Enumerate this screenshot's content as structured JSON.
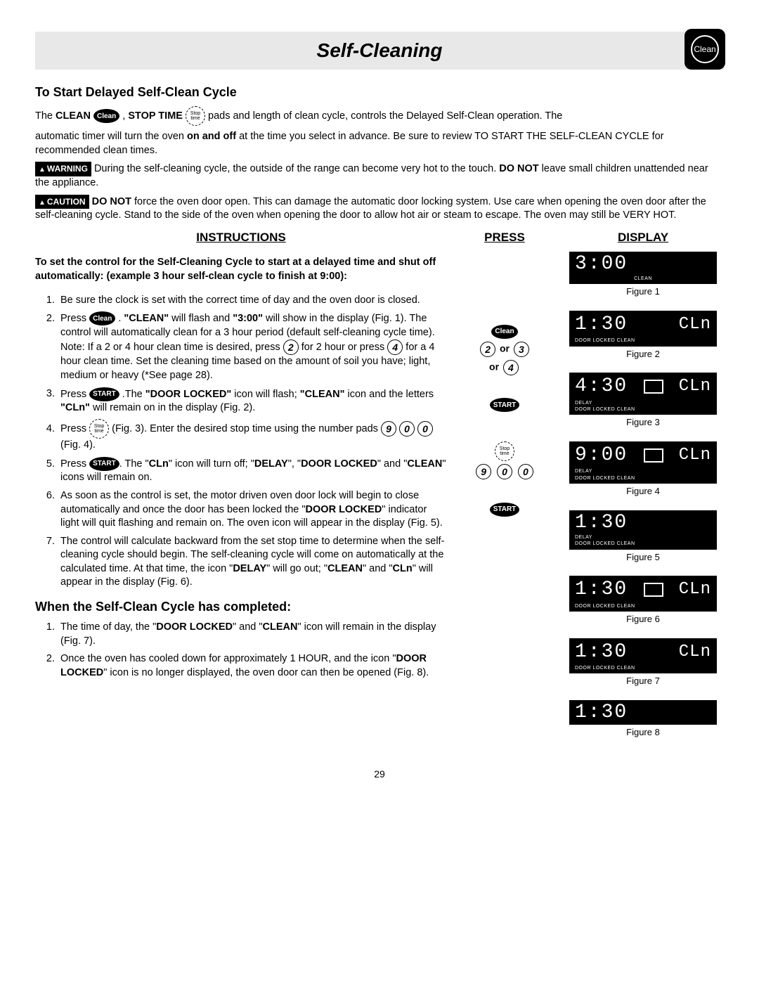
{
  "header": {
    "title": "Self-Cleaning",
    "badge_label": "Clean"
  },
  "section1_heading": "To Start Delayed Self-Clean Cycle",
  "intro": {
    "line1a": "The ",
    "line1b": "CLEAN",
    "line1c": ", ",
    "line1d": "STOP TIME",
    "line1e": " pads and length of clean cycle, controls the Delayed Self-Clean operation. The",
    "line2a": "automatic timer will turn the oven ",
    "line2b": "on and off",
    "line2c": " at the time you select in advance. Be sure to review TO START THE SELF-CLEAN CYCLE for recommended clean times."
  },
  "warning": {
    "label": "WARNING",
    "text_a": "During the self-cleaning cycle, the outside of the range can become very hot to the touch. ",
    "text_b": "DO NOT",
    "text_c": " leave small children unattended near the appliance."
  },
  "caution": {
    "label": "CAUTION",
    "text_a": "DO NOT",
    "text_b": " force the oven door open. This can damage the automatic door locking system. Use care when opening the oven door after the self-cleaning cycle. Stand to the side of the oven when opening the door to allow hot air or steam to escape.  The oven may still be VERY HOT."
  },
  "col_headers": {
    "instructions": "INSTRUCTIONS",
    "press": "PRESS",
    "display": "DISPLAY"
  },
  "instr_lead": "To set the control for the Self-Cleaning Cycle to start at a delayed time and shut off automatically: (example 3 hour self-clean cycle to finish at 9:00):",
  "instructions": [
    "Be sure the clock is set with the correct time of day and the oven door is closed.",
    "Press [Clean] . \"CLEAN\" will flash and \"3:00\" will show in the display (Fig. 1). The control will automatically clean for a 3 hour period (default self-cleaning cycle time). Note: If a 2 or 4 hour clean time is desired, press (2) for 2 hour or press (4) for a 4 hour clean time.  Set the cleaning time based on the amount of soil you have; light, medium or heavy (*See page 28).",
    "Press [START] .The \"DOOR LOCKED\" icon will flash; \"CLEAN\" icon and the letters \"CLn\" will remain on in the display (Fig. 2).",
    "Press [Stop time] (Fig. 3).  Enter the desired stop time using the number pads (9)(0)(0) (Fig. 4).",
    "Press [START]. The \"CLn\" icon will turn off; \"DELAY\", \"DOOR LOCKED\" and \"CLEAN\" icons will remain on.",
    "As soon as the control is set, the motor driven oven door lock will begin to close automatically and once the door has been locked the \"DOOR LOCKED\" indicator light will quit flashing and remain on. The oven icon will appear in the display (Fig. 5).",
    "The control will calculate backward from the set stop time to determine when the self-cleaning cycle should begin. The self-cleaning cycle will come on automatically at the calculated time. At that time, the icon \"DELAY\" will go out; \"CLEAN\" and \"CLn\" will appear in the display (Fig. 6)."
  ],
  "section2_heading": "When the Self-Clean Cycle has completed:",
  "completed": [
    "The time of day, the \"DOOR LOCKED\" and \"CLEAN\" icon will remain in the display (Fig. 7).",
    "Once the oven has cooled down for approximately 1 HOUR, and the icon \"DOOR LOCKED\"  icon is no longer displayed, the oven door can then be opened (Fig. 8)."
  ],
  "pads": {
    "clean": "Clean",
    "start": "START",
    "stoptime_top": "Stop",
    "stoptime_bot": "time",
    "or": "or"
  },
  "displays": [
    {
      "main": "3:00",
      "side": "",
      "oven": false,
      "sub": "CLEAN",
      "sub_align": "center",
      "caption": "Figure 1"
    },
    {
      "main": "1:30",
      "side": "CLn",
      "oven": false,
      "sub": "DOOR LOCKED CLEAN",
      "caption": "Figure 2"
    },
    {
      "main": "4:30",
      "side": "CLn",
      "oven": true,
      "sub": "DELAY\nDOOR LOCKED CLEAN",
      "caption": "Figure 3"
    },
    {
      "main": "9:00",
      "side": "CLn",
      "oven": true,
      "sub": "DELAY\nDOOR LOCKED CLEAN",
      "caption": "Figure 4"
    },
    {
      "main": "1:30",
      "side": "",
      "oven": false,
      "sub": "DELAY\nDOOR LOCKED CLEAN",
      "caption": "Figure 5"
    },
    {
      "main": "1:30",
      "side": "CLn",
      "oven": true,
      "sub": "DOOR LOCKED CLEAN",
      "caption": "Figure 6"
    },
    {
      "main": "1:30",
      "side": "CLn",
      "oven": false,
      "sub": "DOOR LOCKED CLEAN",
      "caption": "Figure 7"
    },
    {
      "main": "1:30",
      "side": "",
      "oven": false,
      "sub": "",
      "caption": "Figure 8"
    }
  ],
  "page_number": "29"
}
